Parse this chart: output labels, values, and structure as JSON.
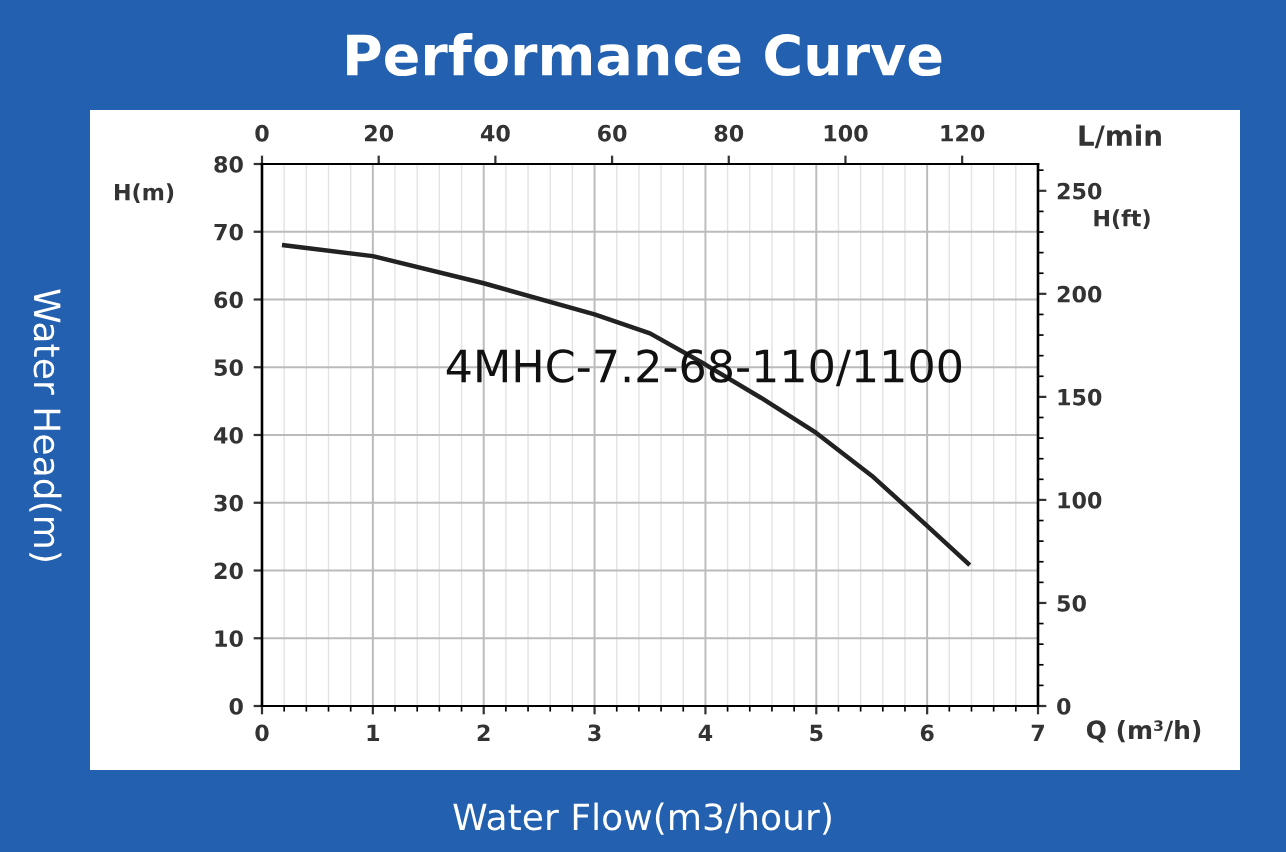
{
  "chart_data": {
    "type": "line",
    "title": "Performance Curve",
    "xlabel": "Water Flow(m3/hour)",
    "ylabel": "Water Head(m)",
    "annotations": [
      "4MHC-7.2-68-110/1100",
      "H(m)",
      "H(ft)",
      "Q (m³/h)",
      "L/min"
    ],
    "x": [
      0.2,
      1,
      2,
      3,
      3.5,
      4,
      4.5,
      5,
      5.5,
      6,
      6.37
    ],
    "series": [
      {
        "color": "#222222",
        "values": [
          68,
          66.4,
          62.4,
          57.8,
          55,
          50.4,
          45.5,
          40.3,
          34,
          26.6,
          21
        ]
      }
    ],
    "xlim": [
      0,
      7
    ],
    "xticks": [
      0,
      1,
      2,
      3,
      4,
      5,
      6,
      7
    ],
    "ylim": [
      0,
      80
    ],
    "yticks": [
      0,
      10,
      20,
      30,
      40,
      50,
      60,
      70,
      80
    ],
    "x2lim": [
      0,
      133
    ],
    "x2ticks": [
      0,
      20,
      40,
      60,
      80,
      100,
      120
    ],
    "y2lim": [
      0,
      263
    ],
    "y2ticks": [
      0,
      50,
      100,
      150,
      200,
      250
    ],
    "grid": true,
    "legend": false,
    "marker": "none",
    "line_style": "solid"
  }
}
